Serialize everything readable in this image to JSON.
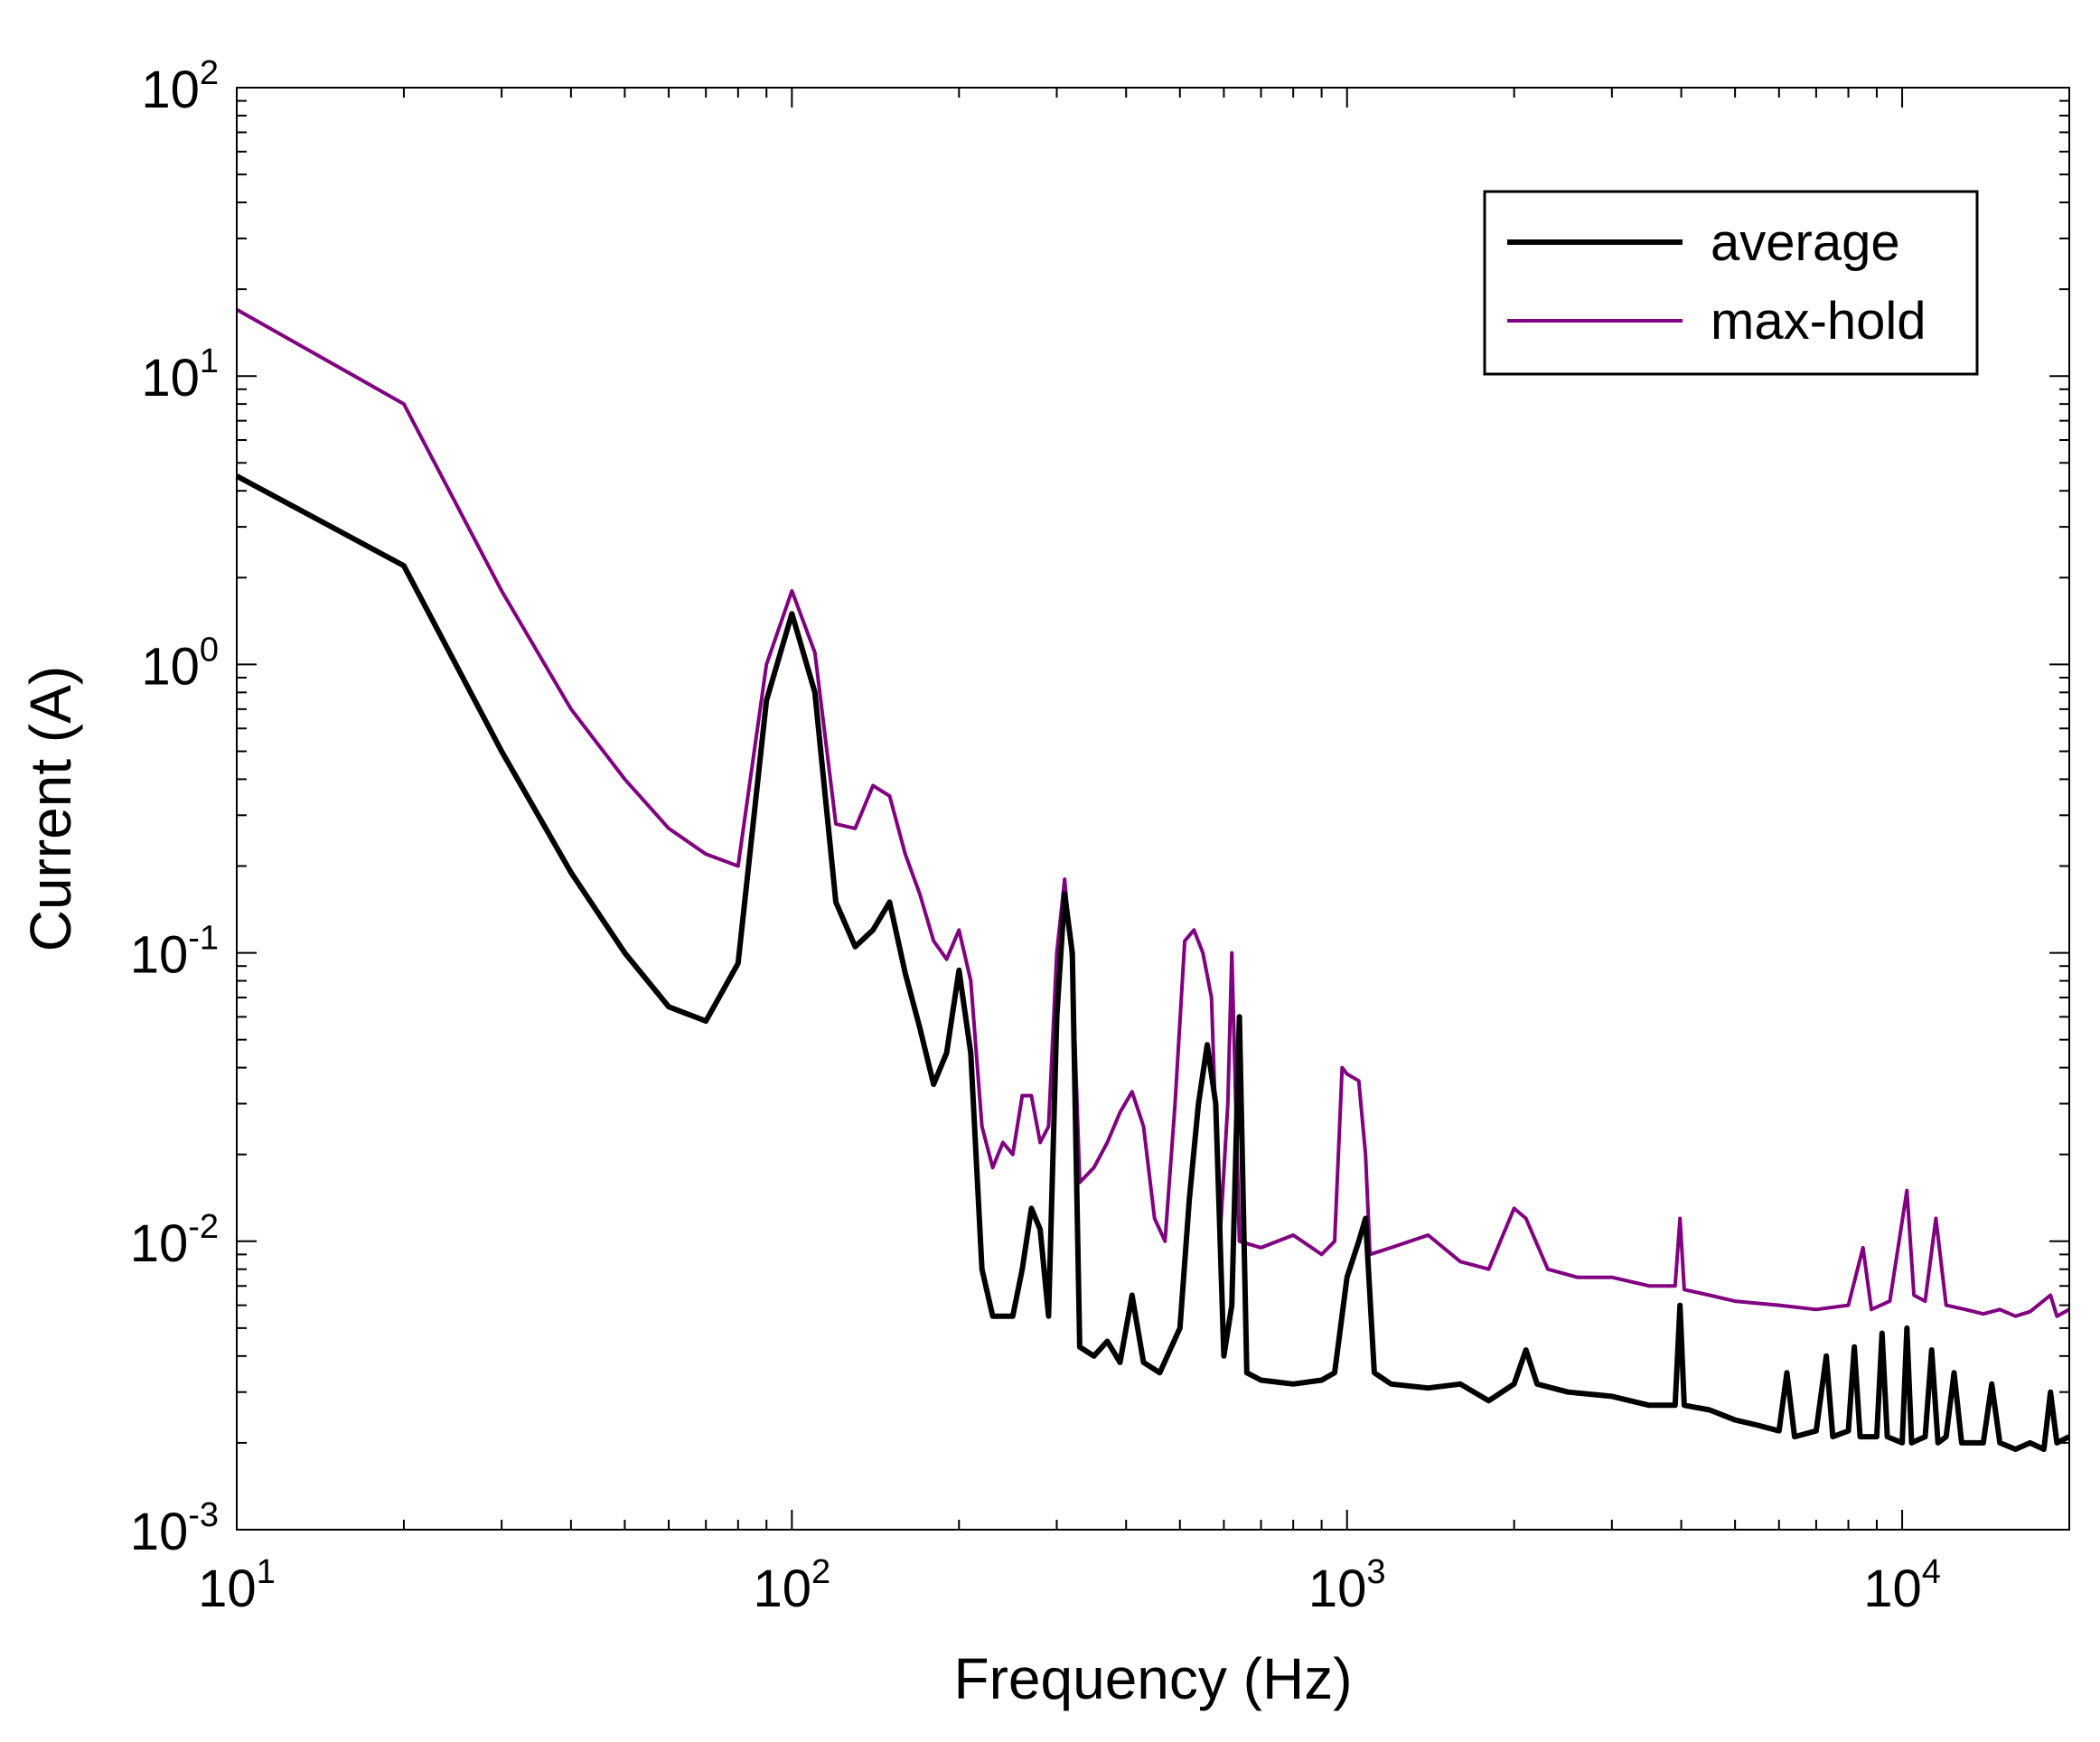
{
  "chart_data": {
    "type": "line",
    "xlabel": "Frequency (Hz)",
    "ylabel": "Current (A)",
    "xscale": "log",
    "yscale": "log",
    "xlim": [
      10,
      20000
    ],
    "ylim": [
      0.001,
      100
    ],
    "grid": false,
    "legend_position": "top-right",
    "x_ticks": [
      {
        "base": "10",
        "exp": "1",
        "value": 10
      },
      {
        "base": "10",
        "exp": "2",
        "value": 100
      },
      {
        "base": "10",
        "exp": "3",
        "value": 1000
      },
      {
        "base": "10",
        "exp": "4",
        "value": 10000
      }
    ],
    "y_ticks": [
      {
        "base": "10",
        "exp": "-3",
        "value": 0.001
      },
      {
        "base": "10",
        "exp": "-2",
        "value": 0.01
      },
      {
        "base": "10",
        "exp": "-1",
        "value": 0.1
      },
      {
        "base": "10",
        "exp": "0",
        "value": 1
      },
      {
        "base": "10",
        "exp": "1",
        "value": 10
      },
      {
        "base": "10",
        "exp": "2",
        "value": 100
      }
    ],
    "series": [
      {
        "name": "average",
        "color": "#000000",
        "points": [
          [
            10,
            4.5
          ],
          [
            20,
            2.2
          ],
          [
            30,
            0.5
          ],
          [
            40,
            0.19
          ],
          [
            50,
            0.1
          ],
          [
            60,
            0.065
          ],
          [
            70,
            0.058
          ],
          [
            80,
            0.092
          ],
          [
            90,
            0.75
          ],
          [
            100,
            1.5
          ],
          [
            110,
            0.8
          ],
          [
            120,
            0.15
          ],
          [
            130,
            0.105
          ],
          [
            140,
            0.12
          ],
          [
            150,
            0.15
          ],
          [
            160,
            0.085
          ],
          [
            170,
            0.055
          ],
          [
            180,
            0.035
          ],
          [
            190,
            0.045
          ],
          [
            200,
            0.087
          ],
          [
            210,
            0.045
          ],
          [
            220,
            0.008
          ],
          [
            230,
            0.0055
          ],
          [
            250,
            0.0055
          ],
          [
            260,
            0.008
          ],
          [
            270,
            0.013
          ],
          [
            280,
            0.011
          ],
          [
            290,
            0.0055
          ],
          [
            300,
            0.06
          ],
          [
            310,
            0.16
          ],
          [
            320,
            0.1
          ],
          [
            330,
            0.0043
          ],
          [
            350,
            0.004
          ],
          [
            370,
            0.0045
          ],
          [
            390,
            0.0038
          ],
          [
            410,
            0.0065
          ],
          [
            430,
            0.0038
          ],
          [
            460,
            0.0035
          ],
          [
            500,
            0.005
          ],
          [
            520,
            0.014
          ],
          [
            540,
            0.03
          ],
          [
            560,
            0.048
          ],
          [
            580,
            0.03
          ],
          [
            600,
            0.004
          ],
          [
            620,
            0.006
          ],
          [
            640,
            0.06
          ],
          [
            660,
            0.0035
          ],
          [
            700,
            0.0033
          ],
          [
            800,
            0.0032
          ],
          [
            900,
            0.0033
          ],
          [
            950,
            0.0035
          ],
          [
            1000,
            0.0075
          ],
          [
            1050,
            0.01
          ],
          [
            1080,
            0.012
          ],
          [
            1120,
            0.0035
          ],
          [
            1200,
            0.0032
          ],
          [
            1400,
            0.0031
          ],
          [
            1600,
            0.0032
          ],
          [
            1800,
            0.0028
          ],
          [
            2000,
            0.0032
          ],
          [
            2100,
            0.0042
          ],
          [
            2200,
            0.0032
          ],
          [
            2500,
            0.003
          ],
          [
            3000,
            0.0029
          ],
          [
            3500,
            0.0027
          ],
          [
            3900,
            0.0027
          ],
          [
            3980,
            0.006
          ],
          [
            4050,
            0.0027
          ],
          [
            4500,
            0.0026
          ],
          [
            5000,
            0.0024
          ],
          [
            5500,
            0.0023
          ],
          [
            6000,
            0.0022
          ],
          [
            6200,
            0.0035
          ],
          [
            6400,
            0.0021
          ],
          [
            7000,
            0.0022
          ],
          [
            7300,
            0.004
          ],
          [
            7500,
            0.0021
          ],
          [
            8000,
            0.0022
          ],
          [
            8200,
            0.0043
          ],
          [
            8400,
            0.0021
          ],
          [
            9000,
            0.0021
          ],
          [
            9200,
            0.0048
          ],
          [
            9400,
            0.0021
          ],
          [
            10000,
            0.002
          ],
          [
            10200,
            0.005
          ],
          [
            10400,
            0.002
          ],
          [
            11000,
            0.0021
          ],
          [
            11300,
            0.0042
          ],
          [
            11600,
            0.002
          ],
          [
            12000,
            0.0021
          ],
          [
            12400,
            0.0035
          ],
          [
            12800,
            0.002
          ],
          [
            14000,
            0.002
          ],
          [
            14500,
            0.0032
          ],
          [
            15000,
            0.002
          ],
          [
            16000,
            0.0019
          ],
          [
            17000,
            0.002
          ],
          [
            18000,
            0.0019
          ],
          [
            18500,
            0.003
          ],
          [
            19000,
            0.002
          ],
          [
            20000,
            0.0021
          ]
        ]
      },
      {
        "name": "max-hold",
        "color": "#800080",
        "points": [
          [
            10,
            17
          ],
          [
            20,
            8
          ],
          [
            30,
            1.8
          ],
          [
            40,
            0.7
          ],
          [
            50,
            0.4
          ],
          [
            60,
            0.27
          ],
          [
            70,
            0.22
          ],
          [
            80,
            0.2
          ],
          [
            90,
            1.0
          ],
          [
            100,
            1.8
          ],
          [
            110,
            1.1
          ],
          [
            120,
            0.28
          ],
          [
            130,
            0.27
          ],
          [
            140,
            0.38
          ],
          [
            150,
            0.35
          ],
          [
            160,
            0.22
          ],
          [
            170,
            0.16
          ],
          [
            180,
            0.11
          ],
          [
            190,
            0.095
          ],
          [
            200,
            0.12
          ],
          [
            210,
            0.08
          ],
          [
            220,
            0.025
          ],
          [
            230,
            0.018
          ],
          [
            240,
            0.022
          ],
          [
            250,
            0.02
          ],
          [
            260,
            0.032
          ],
          [
            270,
            0.032
          ],
          [
            280,
            0.022
          ],
          [
            290,
            0.025
          ],
          [
            300,
            0.1
          ],
          [
            310,
            0.18
          ],
          [
            320,
            0.09
          ],
          [
            330,
            0.016
          ],
          [
            350,
            0.018
          ],
          [
            370,
            0.022
          ],
          [
            390,
            0.028
          ],
          [
            410,
            0.033
          ],
          [
            430,
            0.025
          ],
          [
            450,
            0.012
          ],
          [
            470,
            0.01
          ],
          [
            490,
            0.03
          ],
          [
            510,
            0.11
          ],
          [
            530,
            0.12
          ],
          [
            550,
            0.1
          ],
          [
            570,
            0.07
          ],
          [
            590,
            0.01
          ],
          [
            610,
            0.03
          ],
          [
            620,
            0.1
          ],
          [
            640,
            0.01
          ],
          [
            700,
            0.0095
          ],
          [
            800,
            0.0105
          ],
          [
            900,
            0.009
          ],
          [
            950,
            0.01
          ],
          [
            980,
            0.04
          ],
          [
            1000,
            0.038
          ],
          [
            1050,
            0.036
          ],
          [
            1080,
            0.02
          ],
          [
            1100,
            0.009
          ],
          [
            1200,
            0.0095
          ],
          [
            1400,
            0.0105
          ],
          [
            1600,
            0.0085
          ],
          [
            1800,
            0.008
          ],
          [
            2000,
            0.013
          ],
          [
            2100,
            0.012
          ],
          [
            2300,
            0.008
          ],
          [
            2600,
            0.0075
          ],
          [
            3000,
            0.0075
          ],
          [
            3500,
            0.007
          ],
          [
            3900,
            0.007
          ],
          [
            3980,
            0.012
          ],
          [
            4050,
            0.0068
          ],
          [
            4500,
            0.0065
          ],
          [
            5000,
            0.0062
          ],
          [
            6000,
            0.006
          ],
          [
            7000,
            0.0058
          ],
          [
            8000,
            0.006
          ],
          [
            8500,
            0.0095
          ],
          [
            8800,
            0.0058
          ],
          [
            9500,
            0.0062
          ],
          [
            10200,
            0.015
          ],
          [
            10500,
            0.0065
          ],
          [
            11000,
            0.0062
          ],
          [
            11500,
            0.012
          ],
          [
            12000,
            0.006
          ],
          [
            13000,
            0.0058
          ],
          [
            14000,
            0.0056
          ],
          [
            15000,
            0.0058
          ],
          [
            16000,
            0.0055
          ],
          [
            17000,
            0.0057
          ],
          [
            18500,
            0.0065
          ],
          [
            19000,
            0.0055
          ],
          [
            20000,
            0.0058
          ]
        ]
      }
    ]
  }
}
